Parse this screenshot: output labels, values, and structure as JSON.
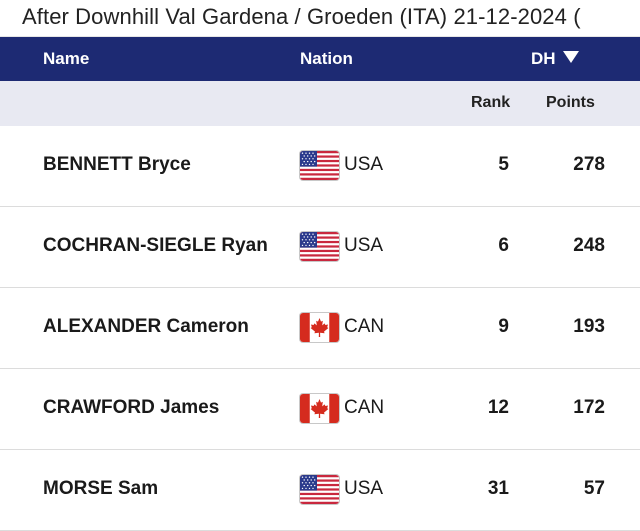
{
  "title": "After Downhill Val Gardena / Groeden (ITA) 21-12-2024 (",
  "header": {
    "name": "Name",
    "nation": "Nation",
    "discipline": "DH",
    "rank": "Rank",
    "points": "Points"
  },
  "colors": {
    "header_bg": "#1d2a73",
    "subheader_bg": "#e8e9f2"
  },
  "rows": [
    {
      "name": "BENNETT Bryce",
      "flag": "usa-flag-icon",
      "nation": "USA",
      "rank": "5",
      "points": "278"
    },
    {
      "name": "COCHRAN-SIEGLE Ryan",
      "flag": "usa-flag-icon",
      "nation": "USA",
      "rank": "6",
      "points": "248"
    },
    {
      "name": "ALEXANDER Cameron",
      "flag": "canada-flag-icon",
      "nation": "CAN",
      "rank": "9",
      "points": "193"
    },
    {
      "name": "CRAWFORD James",
      "flag": "canada-flag-icon",
      "nation": "CAN",
      "rank": "12",
      "points": "172"
    },
    {
      "name": "MORSE Sam",
      "flag": "usa-flag-icon",
      "nation": "USA",
      "rank": "31",
      "points": "57"
    }
  ]
}
